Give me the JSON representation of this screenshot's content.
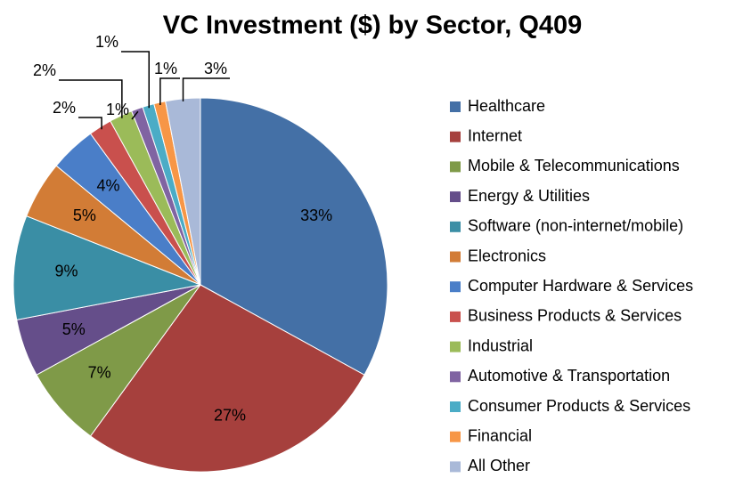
{
  "chart_data": {
    "type": "pie",
    "title": "VC Investment ($) by Sector, Q409",
    "categories": [
      "Healthcare",
      "Internet",
      "Mobile & Telecommunications",
      "Energy & Utilities",
      "Software (non-internet/mobile)",
      "Electronics",
      "Computer Hardware & Services",
      "Business Products & Services",
      "Industrial",
      "Automotive & Transportation",
      "Consumer Products  & Services",
      "Financial",
      "All Other"
    ],
    "values": [
      33,
      27,
      7,
      5,
      9,
      5,
      4,
      2,
      2,
      1,
      1,
      1,
      3
    ],
    "value_labels": [
      "33%",
      "27%",
      "7%",
      "5%",
      "9%",
      "5%",
      "4%",
      "2%",
      "2%",
      "1%",
      "1%",
      "1%",
      "3%"
    ],
    "colors": [
      "#4470A6",
      "#A6403D",
      "#7F9A48",
      "#654E8A",
      "#3A8EA5",
      "#D27C36",
      "#4A7EC8",
      "#C9504D",
      "#9BBB59",
      "#8064A2",
      "#4BACC6",
      "#F79646",
      "#A9B9D8"
    ],
    "legend": "right"
  }
}
